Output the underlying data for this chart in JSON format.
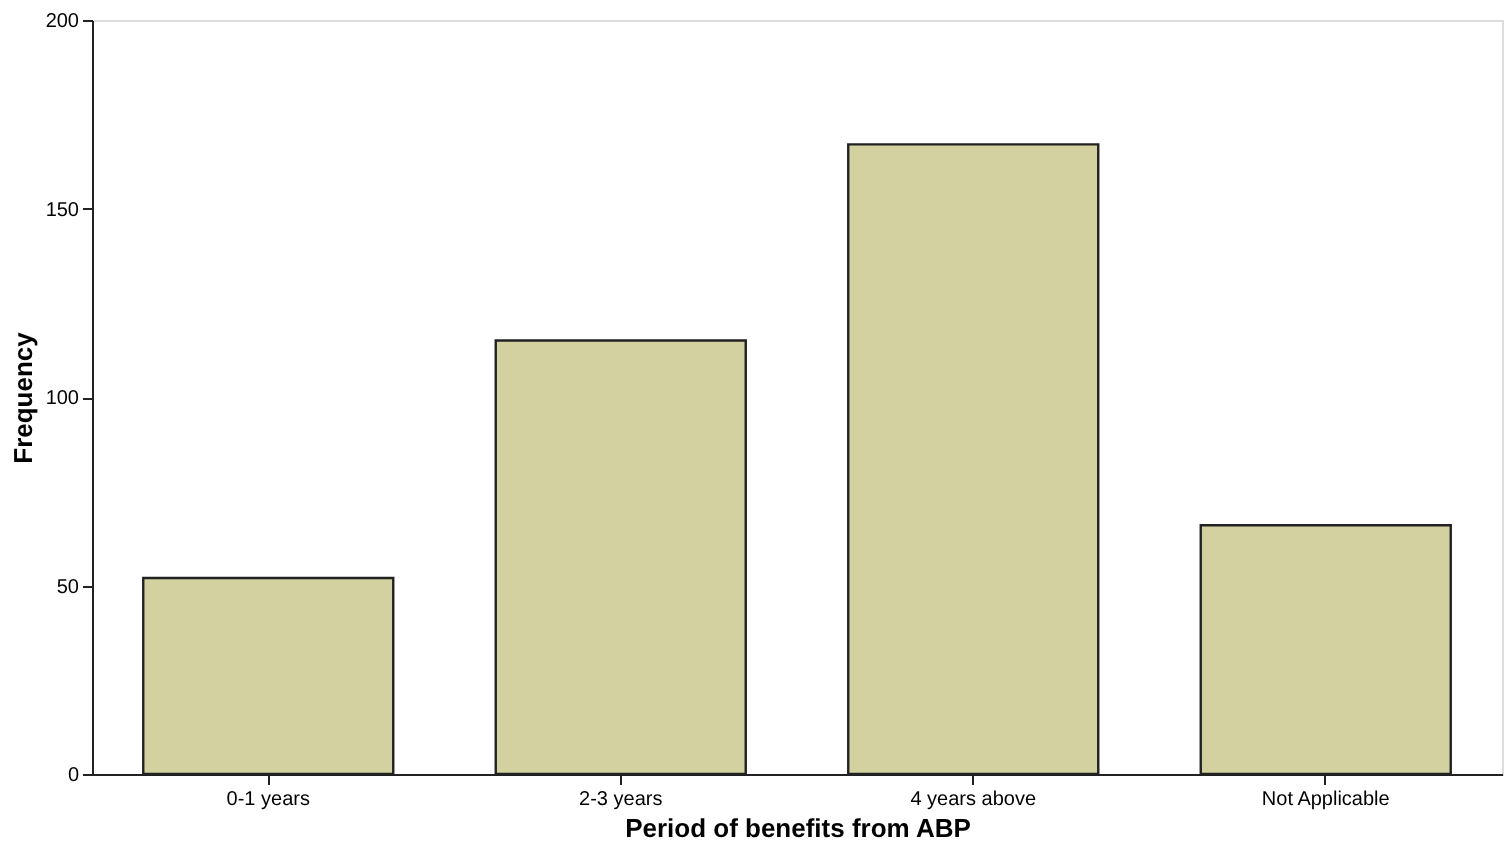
{
  "chart_data": {
    "type": "bar",
    "xlabel": "Period of benefits from ABP",
    "ylabel": "Frequency",
    "categories": [
      "0-1 years",
      "2-3 years",
      "4 years above",
      "Not Applicable"
    ],
    "values": [
      52,
      115,
      167,
      66
    ],
    "color": "#d3d19f",
    "ylim": [
      0,
      200
    ],
    "yticks": [
      0,
      50,
      100,
      150,
      200
    ],
    "grid": false
  }
}
